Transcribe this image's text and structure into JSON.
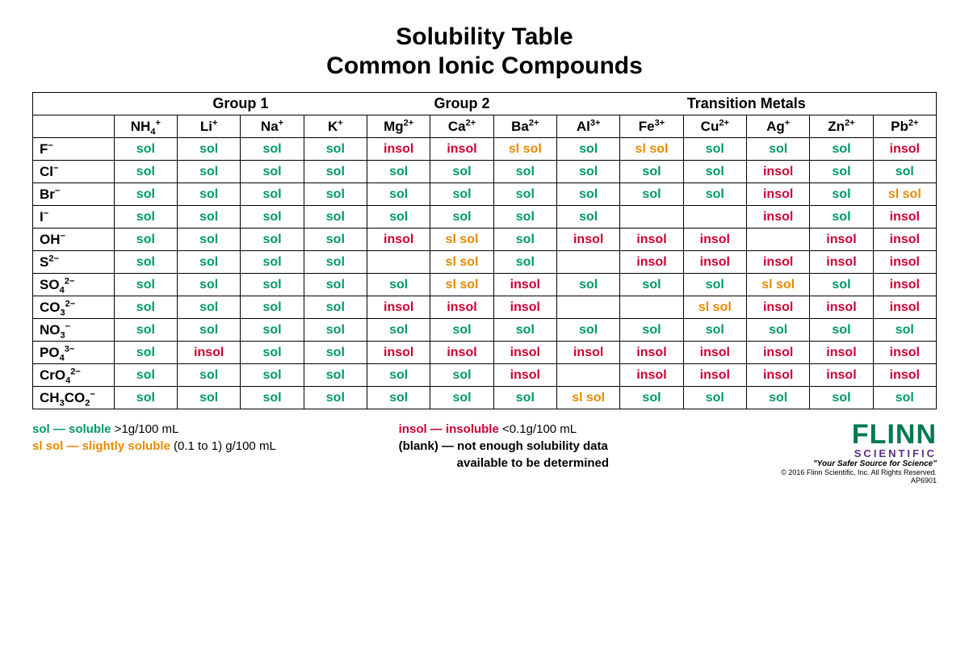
{
  "title": {
    "line1": "Solubility Table",
    "line2": "Common Ionic Compounds"
  },
  "colors": {
    "sol": "#009966",
    "insol": "#cc0033",
    "slsol": "#e68a00",
    "border": "#000000",
    "text": "#000000",
    "background": "#ffffff",
    "brand_green": "#007a4d",
    "brand_purple": "#5b2d82"
  },
  "fonts": {
    "title_size": 30,
    "group_header_size": 18,
    "cation_header_size": 17,
    "cell_size": 16,
    "legend_size": 15
  },
  "groups": [
    {
      "label": "Group 1",
      "span": 4
    },
    {
      "label": "Group 2",
      "span": 3
    },
    {
      "label": "Transition Metals",
      "span": 6
    }
  ],
  "cations": [
    {
      "base": "NH",
      "sub": "4",
      "sup": "+"
    },
    {
      "base": "Li",
      "sub": "",
      "sup": "+"
    },
    {
      "base": "Na",
      "sub": "",
      "sup": "+"
    },
    {
      "base": "K",
      "sub": "",
      "sup": "+"
    },
    {
      "base": "Mg",
      "sub": "",
      "sup": "2+"
    },
    {
      "base": "Ca",
      "sub": "",
      "sup": "2+"
    },
    {
      "base": "Ba",
      "sub": "",
      "sup": "2+"
    },
    {
      "base": "Al",
      "sub": "",
      "sup": "3+"
    },
    {
      "base": "Fe",
      "sub": "",
      "sup": "3+"
    },
    {
      "base": "Cu",
      "sub": "",
      "sup": "2+"
    },
    {
      "base": "Ag",
      "sub": "",
      "sup": "+"
    },
    {
      "base": "Zn",
      "sub": "",
      "sup": "2+"
    },
    {
      "base": "Pb",
      "sub": "",
      "sup": "2+"
    }
  ],
  "anions": [
    {
      "base": "F",
      "sub": "",
      "sup": "−"
    },
    {
      "base": "Cl",
      "sub": "",
      "sup": "−"
    },
    {
      "base": "Br",
      "sub": "",
      "sup": "−"
    },
    {
      "base": "I",
      "sub": "",
      "sup": "−"
    },
    {
      "base": "OH",
      "sub": "",
      "sup": "−"
    },
    {
      "base": "S",
      "sub": "",
      "sup": "2−"
    },
    {
      "base": "SO",
      "sub": "4",
      "sup": "2−"
    },
    {
      "base": "CO",
      "sub": "3",
      "sup": "2−"
    },
    {
      "base": "NO",
      "sub": "3",
      "sup": "−"
    },
    {
      "base": "PO",
      "sub": "4",
      "sup": "3−"
    },
    {
      "base": "CrO",
      "sub": "4",
      "sup": "2−"
    },
    {
      "base": "CH",
      "sub": "3",
      "post": "CO",
      "sub2": "2",
      "sup": "−"
    }
  ],
  "value_labels": {
    "sol": "sol",
    "insol": "insol",
    "slsol": "sl sol",
    "blank": ""
  },
  "rows": [
    [
      "sol",
      "sol",
      "sol",
      "sol",
      "insol",
      "insol",
      "slsol",
      "sol",
      "slsol",
      "sol",
      "sol",
      "sol",
      "insol"
    ],
    [
      "sol",
      "sol",
      "sol",
      "sol",
      "sol",
      "sol",
      "sol",
      "sol",
      "sol",
      "sol",
      "insol",
      "sol",
      "sol"
    ],
    [
      "sol",
      "sol",
      "sol",
      "sol",
      "sol",
      "sol",
      "sol",
      "sol",
      "sol",
      "sol",
      "insol",
      "sol",
      "slsol"
    ],
    [
      "sol",
      "sol",
      "sol",
      "sol",
      "sol",
      "sol",
      "sol",
      "sol",
      "blank",
      "blank",
      "insol",
      "sol",
      "insol"
    ],
    [
      "sol",
      "sol",
      "sol",
      "sol",
      "insol",
      "slsol",
      "sol",
      "insol",
      "insol",
      "insol",
      "blank",
      "insol",
      "insol"
    ],
    [
      "sol",
      "sol",
      "sol",
      "sol",
      "blank",
      "slsol",
      "sol",
      "blank",
      "insol",
      "insol",
      "insol",
      "insol",
      "insol"
    ],
    [
      "sol",
      "sol",
      "sol",
      "sol",
      "sol",
      "slsol",
      "insol",
      "sol",
      "sol",
      "sol",
      "slsol",
      "sol",
      "insol"
    ],
    [
      "sol",
      "sol",
      "sol",
      "sol",
      "insol",
      "insol",
      "insol",
      "blank",
      "blank",
      "slsol",
      "insol",
      "insol",
      "insol"
    ],
    [
      "sol",
      "sol",
      "sol",
      "sol",
      "sol",
      "sol",
      "sol",
      "sol",
      "sol",
      "sol",
      "sol",
      "sol",
      "sol"
    ],
    [
      "sol",
      "insol",
      "sol",
      "sol",
      "insol",
      "insol",
      "insol",
      "insol",
      "insol",
      "insol",
      "insol",
      "insol",
      "insol"
    ],
    [
      "sol",
      "sol",
      "sol",
      "sol",
      "sol",
      "sol",
      "insol",
      "blank",
      "insol",
      "insol",
      "insol",
      "insol",
      "insol"
    ],
    [
      "sol",
      "sol",
      "sol",
      "sol",
      "sol",
      "sol",
      "sol",
      "slsol",
      "sol",
      "sol",
      "sol",
      "sol",
      "sol"
    ]
  ],
  "legend": {
    "sol_label": "sol — soluble",
    "sol_desc": " >1g/100 mL",
    "slsol_label": "sl sol — slightly soluble",
    "slsol_desc": " (0.1 to 1) g/100 mL",
    "insol_label": "insol — insoluble",
    "insol_desc": " <0.1g/100 mL",
    "blank_label": "(blank) — not enough solubility data",
    "blank_desc": "available to be determined"
  },
  "brand": {
    "name": "FLINN",
    "sub": "SCIENTIFIC",
    "tag": "\"Your Safer Source for Science\"",
    "copy": "© 2016 Flinn Scientific, Inc. All Rights Reserved.",
    "code": "AP6901"
  }
}
